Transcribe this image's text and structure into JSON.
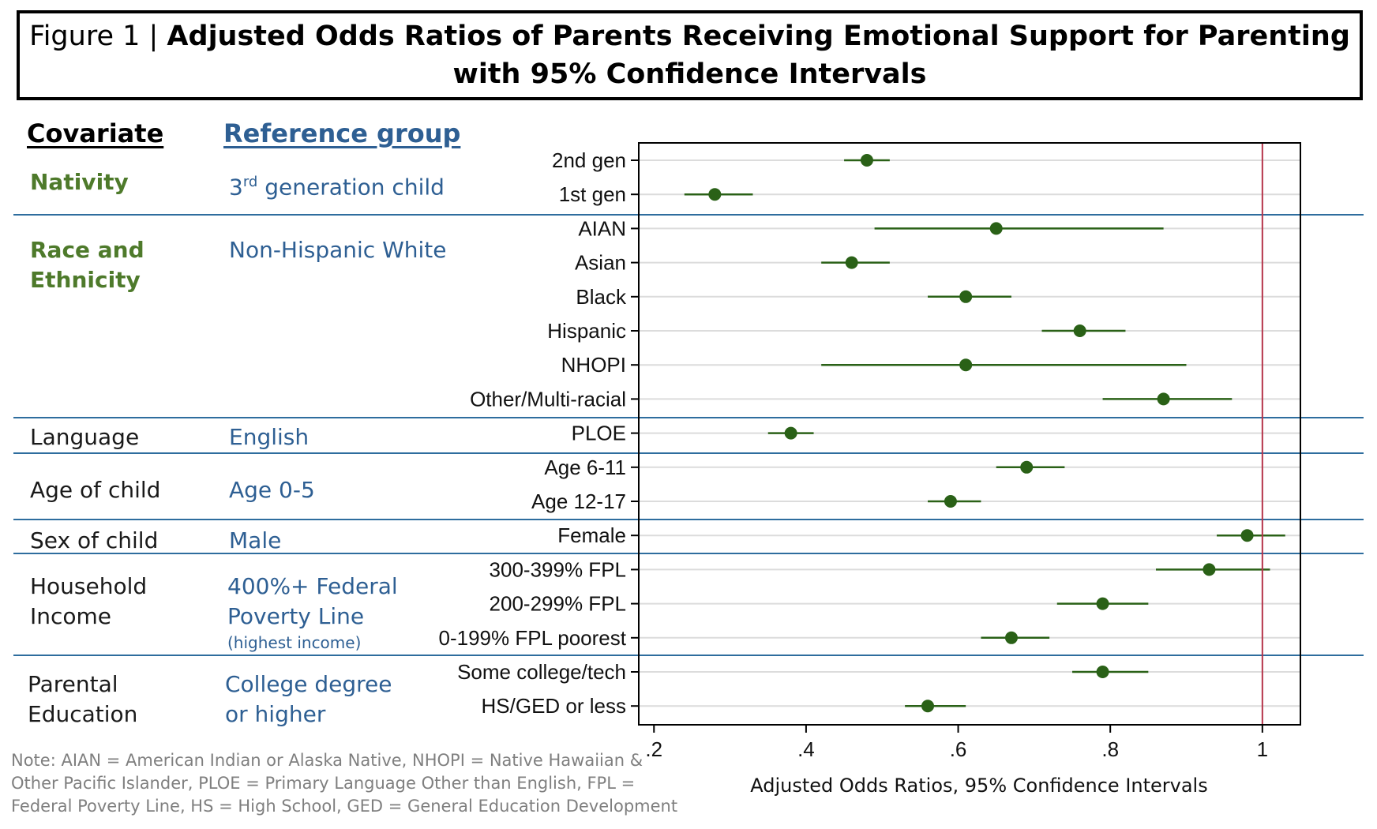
{
  "title": {
    "prefix": "Figure 1 | ",
    "line1": "Adjusted Odds Ratios of Parents Receiving Emotional Support for Parenting",
    "line2": "with 95% Confidence Intervals"
  },
  "headers": {
    "covariate": "Covariate",
    "reference": "Reference group"
  },
  "groups": [
    {
      "covariate": "Nativity",
      "reference": "3rd generation child"
    },
    {
      "covariate_line1": "Race and",
      "covariate_line2": "Ethnicity",
      "reference": "Non-Hispanic White"
    },
    {
      "covariate": "Language",
      "reference": "English"
    },
    {
      "covariate": "Age of child",
      "reference": "Age 0-5"
    },
    {
      "covariate": "Sex of child",
      "reference": "Male"
    },
    {
      "covariate_line1": "Household",
      "covariate_line2": "Income",
      "reference_line1": "400%+ Federal",
      "reference_line2": "Poverty Line",
      "reference_note": "(highest income)"
    },
    {
      "covariate_line1": "Parental",
      "covariate_line2": "Education",
      "reference_line1": "College degree",
      "reference_line2": "or higher"
    }
  ],
  "ref_superscript": {
    "pre": "3",
    "sup": "rd",
    "post": " generation child"
  },
  "note": "Note: AIAN = American Indian or Alaska Native, NHOPI = Native Hawaiian & Other Pacific Islander, PLOE = Primary Language Other than English, FPL = Federal Poverty Line, HS = High School, GED = General Education Development",
  "colors": {
    "point": "#2a6117",
    "reference_line": "#b5344a",
    "separator": "#2e6d9e",
    "covariate_green": "#4e7a2b",
    "reference_blue": "#2e5f93"
  },
  "chart_data": {
    "type": "scatter",
    "subtype": "forest plot with confidence intervals",
    "xlabel": "Adjusted Odds Ratios, 95% Confidence Intervals",
    "xlim": [
      0.18,
      1.05
    ],
    "xticks": [
      0.2,
      0.4,
      0.6,
      0.8,
      1.0
    ],
    "xtick_labels": [
      ".2",
      ".4",
      ".6",
      ".8",
      "1"
    ],
    "reference_line": 1,
    "grid": "horizontal",
    "series": [
      {
        "label": "2nd gen",
        "or": 0.48,
        "low": 0.45,
        "high": 0.51
      },
      {
        "label": "1st gen",
        "or": 0.28,
        "low": 0.24,
        "high": 0.33
      },
      {
        "label": "AIAN",
        "or": 0.65,
        "low": 0.49,
        "high": 0.87
      },
      {
        "label": "Asian",
        "or": 0.46,
        "low": 0.42,
        "high": 0.51
      },
      {
        "label": "Black",
        "or": 0.61,
        "low": 0.56,
        "high": 0.67
      },
      {
        "label": "Hispanic",
        "or": 0.76,
        "low": 0.71,
        "high": 0.82
      },
      {
        "label": "NHOPI",
        "or": 0.61,
        "low": 0.42,
        "high": 0.9
      },
      {
        "label": "Other/Multi-racial",
        "or": 0.87,
        "low": 0.79,
        "high": 0.96
      },
      {
        "label": "PLOE",
        "or": 0.38,
        "low": 0.35,
        "high": 0.41
      },
      {
        "label": "Age 6-11",
        "or": 0.69,
        "low": 0.65,
        "high": 0.74
      },
      {
        "label": "Age 12-17",
        "or": 0.59,
        "low": 0.56,
        "high": 0.63
      },
      {
        "label": "Female",
        "or": 0.98,
        "low": 0.94,
        "high": 1.03
      },
      {
        "label": "300-399% FPL",
        "or": 0.93,
        "low": 0.86,
        "high": 1.01
      },
      {
        "label": "200-299% FPL",
        "or": 0.79,
        "low": 0.73,
        "high": 0.85
      },
      {
        "label": "0-199% FPL poorest",
        "or": 0.67,
        "low": 0.63,
        "high": 0.72
      },
      {
        "label": "Some college/tech",
        "or": 0.79,
        "low": 0.75,
        "high": 0.85
      },
      {
        "label": "HS/GED or less",
        "or": 0.56,
        "low": 0.53,
        "high": 0.61
      }
    ]
  }
}
